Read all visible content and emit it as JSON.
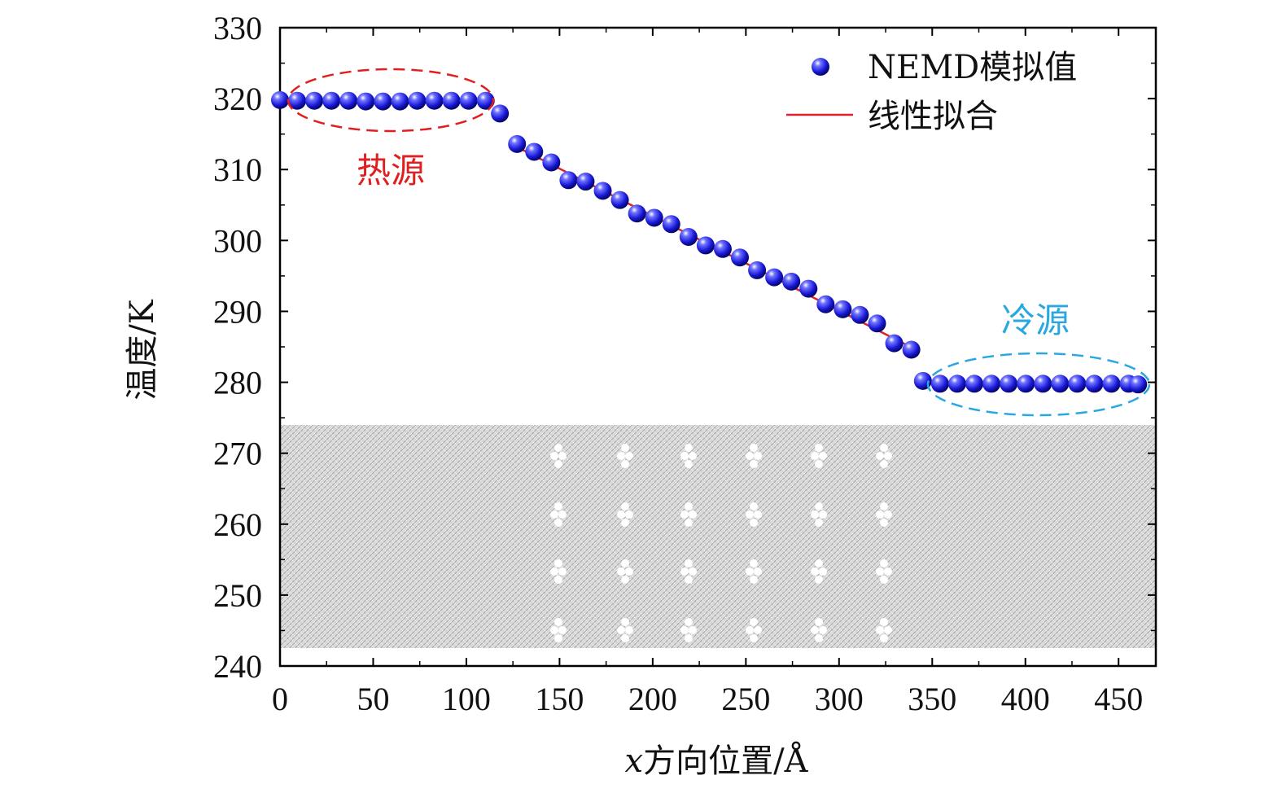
{
  "chart_data": {
    "type": "scatter",
    "xlabel_var": "x",
    "xlabel_text": "方向位置/Å",
    "ylabel": "温度/K",
    "xlim": [
      0,
      470
    ],
    "ylim": [
      240,
      330
    ],
    "x_ticks": [
      0,
      50,
      100,
      150,
      200,
      250,
      300,
      350,
      400,
      450
    ],
    "y_ticks": [
      240,
      250,
      260,
      270,
      280,
      290,
      300,
      310,
      320,
      330
    ],
    "legend": {
      "position": "top-right",
      "entries": [
        {
          "label": "NEMD模拟值",
          "marker": "sphere",
          "color": "#1a1adb"
        },
        {
          "label": "线性拟合",
          "marker": "line",
          "color": "#e0202a"
        }
      ]
    },
    "series": [
      {
        "name": "NEMD模拟值",
        "x": [
          0,
          9.2,
          18.4,
          27.6,
          36.8,
          46,
          55.2,
          64.4,
          73.6,
          82.8,
          92,
          101.2,
          110.4,
          118,
          127.2,
          136.4,
          145.6,
          154.8,
          164,
          173.2,
          182.4,
          191.6,
          200.8,
          210,
          219.2,
          228.4,
          237.6,
          246.8,
          256,
          265.2,
          274.4,
          283.6,
          292.8,
          302,
          311.2,
          320.4,
          329.6,
          338.8,
          345,
          354.2,
          363.4,
          372.6,
          381.8,
          391,
          400.2,
          409.4,
          418.6,
          427.8,
          437,
          446.2,
          455.4,
          460.5
        ],
        "y": [
          319.8,
          319.7,
          319.7,
          319.7,
          319.7,
          319.6,
          319.6,
          319.6,
          319.7,
          319.7,
          319.7,
          319.7,
          319.7,
          317.9,
          313.6,
          312.5,
          311,
          308.5,
          308.3,
          307,
          305.7,
          303.8,
          303.2,
          302.3,
          300.5,
          299.3,
          298.8,
          297.6,
          295.8,
          294.8,
          294.2,
          293.2,
          291,
          290.3,
          289.5,
          288.3,
          285.5,
          284.6,
          280.2,
          279.8,
          279.8,
          279.8,
          279.8,
          279.8,
          279.8,
          279.8,
          279.8,
          279.8,
          279.8,
          279.8,
          279.8,
          279.7
        ]
      },
      {
        "name": "线性拟合",
        "type": "line",
        "x": [
          127,
          336
        ],
        "y": [
          313.2,
          285.3
        ]
      }
    ],
    "annotations": [
      {
        "text": "热源",
        "color": "#e02020",
        "x": 60,
        "y": 310
      },
      {
        "text": "冷源",
        "color": "#29a8e0",
        "x": 407,
        "y": 289
      }
    ],
    "colors": {
      "hot": "#e02020",
      "cold": "#29a8e0",
      "points": "#1a1adb",
      "fit": "#e0202a",
      "lattice": "#9a9a9a"
    }
  }
}
